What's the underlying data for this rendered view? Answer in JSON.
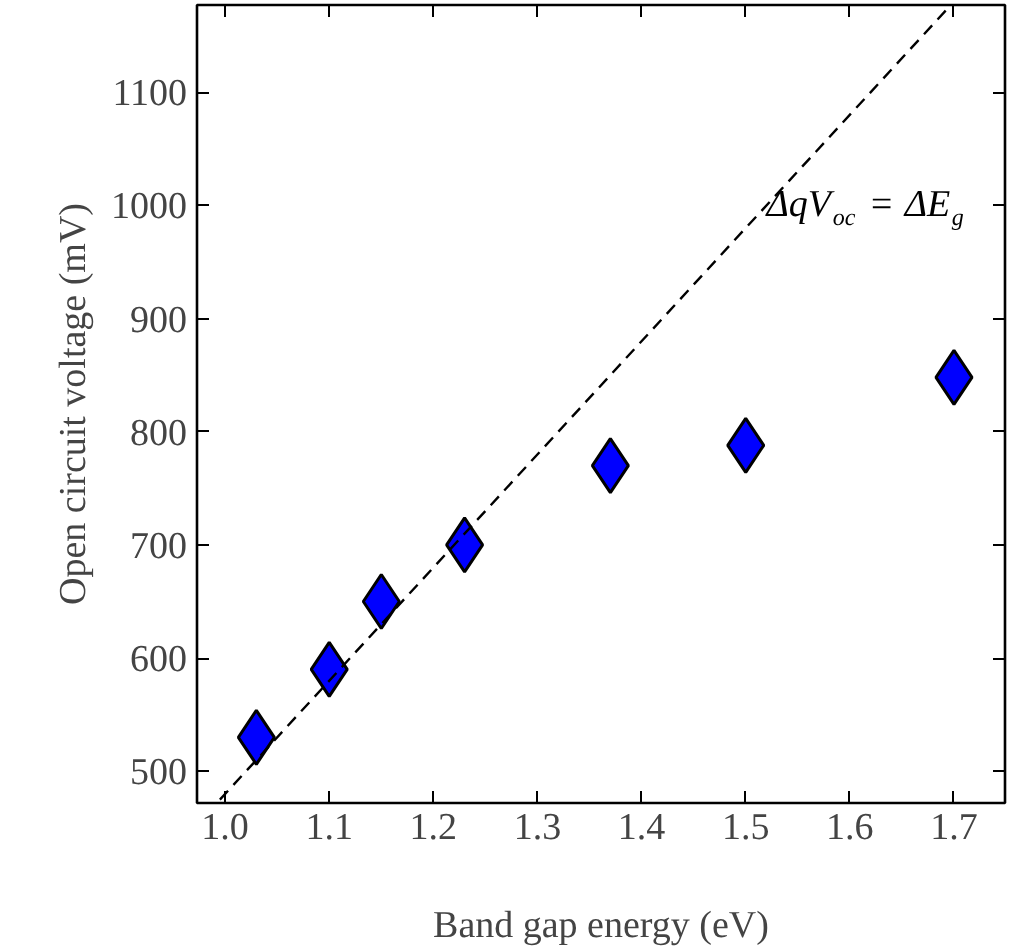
{
  "chart_data": {
    "type": "scatter",
    "xlabel": "Band gap energy (eV)",
    "ylabel": "Open circuit voltage (mV)",
    "xlim": [
      0.973,
      1.749
    ],
    "ylim": [
      472,
      1177
    ],
    "xticks": [
      {
        "value": 1.0,
        "label": "1.0"
      },
      {
        "value": 1.1,
        "label": "1.1"
      },
      {
        "value": 1.2,
        "label": "1.2"
      },
      {
        "value": 1.3,
        "label": "1.3"
      },
      {
        "value": 1.4,
        "label": "1.4"
      },
      {
        "value": 1.5,
        "label": "1.5"
      },
      {
        "value": 1.6,
        "label": "1.6"
      },
      {
        "value": 1.7,
        "label": "1.7"
      }
    ],
    "yticks": [
      500,
      600,
      700,
      800,
      900,
      1000,
      1100
    ],
    "grid": false,
    "marker": "diamond",
    "series": [
      {
        "type": "scatter",
        "color": "#0000ff",
        "x": [
          1.03,
          1.1,
          1.15,
          1.23,
          1.37,
          1.5,
          1.7
        ],
        "values": [
          530,
          590,
          650,
          700,
          770,
          788,
          848
        ]
      },
      {
        "type": "line",
        "color": "#000000",
        "line_style": "dashed",
        "marker": "none",
        "x": [
          0.995,
          1.697
        ],
        "values": [
          475,
          1177
        ]
      }
    ],
    "annotations": [
      {
        "text": "ΔqV$_{oc}$ = ΔE$_{g}$",
        "x": 1.52,
        "y": 1000
      }
    ]
  }
}
